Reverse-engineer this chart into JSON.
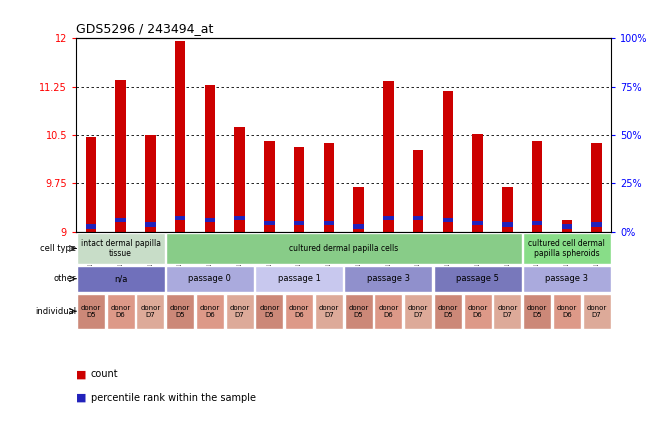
{
  "title": "GDS5296 / 243494_at",
  "samples": [
    "GSM1090232",
    "GSM1090233",
    "GSM1090234",
    "GSM1090235",
    "GSM1090236",
    "GSM1090237",
    "GSM1090238",
    "GSM1090239",
    "GSM1090240",
    "GSM1090241",
    "GSM1090242",
    "GSM1090243",
    "GSM1090244",
    "GSM1090245",
    "GSM1090246",
    "GSM1090247",
    "GSM1090248",
    "GSM1090249"
  ],
  "red_values": [
    10.47,
    11.35,
    10.5,
    11.95,
    11.28,
    10.63,
    10.4,
    10.32,
    10.37,
    9.69,
    11.33,
    10.26,
    11.18,
    10.52,
    9.7,
    10.4,
    9.18,
    10.37
  ],
  "blue_values": [
    9.05,
    9.15,
    9.08,
    9.18,
    9.15,
    9.18,
    9.1,
    9.1,
    9.1,
    9.05,
    9.18,
    9.18,
    9.15,
    9.1,
    9.08,
    9.1,
    9.05,
    9.08
  ],
  "blue_heights": [
    0.07,
    0.07,
    0.07,
    0.07,
    0.07,
    0.07,
    0.07,
    0.07,
    0.07,
    0.07,
    0.07,
    0.07,
    0.07,
    0.07,
    0.07,
    0.07,
    0.07,
    0.07
  ],
  "ylim": [
    9.0,
    12.0
  ],
  "yticks_left": [
    9.0,
    9.75,
    10.5,
    11.25,
    12.0
  ],
  "yticks_right": [
    0,
    25,
    50,
    75,
    100
  ],
  "bar_width": 0.35,
  "bar_color": "#cc0000",
  "blue_color": "#2222bb",
  "chart_bg": "#e8e8e8",
  "cell_type_groups": [
    {
      "label": "intact dermal papilla\ntissue",
      "start": 0,
      "end": 3,
      "color": "#c8ddc8"
    },
    {
      "label": "cultured dermal papilla cells",
      "start": 3,
      "end": 15,
      "color": "#88cc88"
    },
    {
      "label": "cultured cell dermal\npapilla spheroids",
      "start": 15,
      "end": 18,
      "color": "#88dd88"
    }
  ],
  "other_groups": [
    {
      "label": "n/a",
      "start": 0,
      "end": 3,
      "color": "#7070bb"
    },
    {
      "label": "passage 0",
      "start": 3,
      "end": 6,
      "color": "#aaaadd"
    },
    {
      "label": "passage 1",
      "start": 6,
      "end": 9,
      "color": "#c8c8ee"
    },
    {
      "label": "passage 3",
      "start": 9,
      "end": 12,
      "color": "#9090cc"
    },
    {
      "label": "passage 5",
      "start": 12,
      "end": 15,
      "color": "#7878bb"
    },
    {
      "label": "passage 3",
      "start": 15,
      "end": 18,
      "color": "#aaaadd"
    }
  ],
  "individual_groups": [
    {
      "label": "donor\nD5",
      "start": 0,
      "end": 1,
      "color": "#cc8878"
    },
    {
      "label": "donor\nD6",
      "start": 1,
      "end": 2,
      "color": "#dd9988"
    },
    {
      "label": "donor\nD7",
      "start": 2,
      "end": 3,
      "color": "#ddaa99"
    },
    {
      "label": "donor\nD5",
      "start": 3,
      "end": 4,
      "color": "#cc8878"
    },
    {
      "label": "donor\nD6",
      "start": 4,
      "end": 5,
      "color": "#dd9988"
    },
    {
      "label": "donor\nD7",
      "start": 5,
      "end": 6,
      "color": "#ddaa99"
    },
    {
      "label": "donor\nD5",
      "start": 6,
      "end": 7,
      "color": "#cc8878"
    },
    {
      "label": "donor\nD6",
      "start": 7,
      "end": 8,
      "color": "#dd9988"
    },
    {
      "label": "donor\nD7",
      "start": 8,
      "end": 9,
      "color": "#ddaa99"
    },
    {
      "label": "donor\nD5",
      "start": 9,
      "end": 10,
      "color": "#cc8878"
    },
    {
      "label": "donor\nD6",
      "start": 10,
      "end": 11,
      "color": "#dd9988"
    },
    {
      "label": "donor\nD7",
      "start": 11,
      "end": 12,
      "color": "#ddaa99"
    },
    {
      "label": "donor\nD5",
      "start": 12,
      "end": 13,
      "color": "#cc8878"
    },
    {
      "label": "donor\nD6",
      "start": 13,
      "end": 14,
      "color": "#dd9988"
    },
    {
      "label": "donor\nD7",
      "start": 14,
      "end": 15,
      "color": "#ddaa99"
    },
    {
      "label": "donor\nD5",
      "start": 15,
      "end": 16,
      "color": "#cc8878"
    },
    {
      "label": "donor\nD6",
      "start": 16,
      "end": 17,
      "color": "#dd9988"
    },
    {
      "label": "donor\nD7",
      "start": 17,
      "end": 18,
      "color": "#ddaa99"
    }
  ],
  "row_labels": [
    "cell type",
    "other",
    "individual"
  ],
  "legend_items": [
    {
      "label": "count",
      "color": "#cc0000"
    },
    {
      "label": "percentile rank within the sample",
      "color": "#2222bb"
    }
  ]
}
